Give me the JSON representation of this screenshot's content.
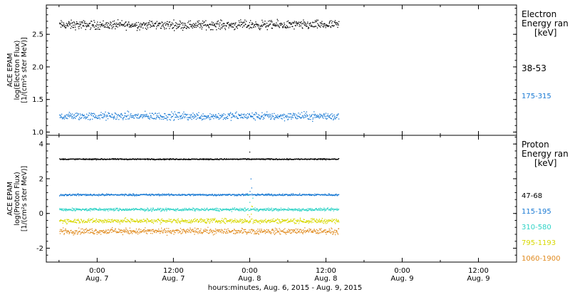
{
  "chart_data": [
    {
      "type": "scatter",
      "panel": "electron",
      "ylabel_lines": [
        "ACE EPAM",
        "log(Electron Flux)",
        "[1/(cm²s ster MeV)]"
      ],
      "ylim": [
        0.95,
        2.95
      ],
      "yticks": [
        1.0,
        1.5,
        2.0,
        2.5
      ],
      "ytick_labels": [
        "1.0",
        "1.5",
        "2.0",
        "2.5"
      ],
      "legend_title_lines": [
        "Electron",
        "Energy ran",
        "[keV]"
      ],
      "series": [
        {
          "name": "38-53",
          "color": "#000000",
          "baseline": 2.65,
          "spread": 0.1
        },
        {
          "name": "175-315",
          "color": "#1a7ad4",
          "baseline": 1.25,
          "spread": 0.09
        }
      ]
    },
    {
      "type": "scatter",
      "panel": "proton",
      "ylabel_lines": [
        "ACE EPAM",
        "log(Proton Flux)",
        "[1/(cm²s ster MeV)]"
      ],
      "ylim": [
        -2.8,
        4.5
      ],
      "yticks": [
        -2,
        0,
        2,
        4
      ],
      "ytick_labels": [
        "-2",
        "0",
        "2",
        "4"
      ],
      "legend_title_lines": [
        "Proton",
        "Energy ran",
        "[keV]"
      ],
      "series": [
        {
          "name": "47-68",
          "color": "#000000",
          "baseline": 3.15,
          "spread": 0.05
        },
        {
          "name": "115-195",
          "color": "#1a7ad4",
          "baseline": 1.1,
          "spread": 0.08
        },
        {
          "name": "310-580",
          "color": "#2ed3c6",
          "baseline": 0.25,
          "spread": 0.12
        },
        {
          "name": "795-1193",
          "color": "#d8d800",
          "baseline": -0.4,
          "spread": 0.2
        },
        {
          "name": "1060-1900",
          "color": "#e08a1e",
          "baseline": -1.0,
          "spread": 0.25
        }
      ]
    }
  ],
  "x_axis": {
    "hours_range": [
      -8,
      66
    ],
    "data_end_hours": 38,
    "ticks": [
      {
        "hours": 0,
        "time": "0:00",
        "date": "Aug. 7"
      },
      {
        "hours": 12,
        "time": "12:00",
        "date": "Aug. 7"
      },
      {
        "hours": 24,
        "time": "0:00",
        "date": "Aug. 8"
      },
      {
        "hours": 36,
        "time": "12:00",
        "date": "Aug. 8"
      },
      {
        "hours": 48,
        "time": "0:00",
        "date": "Aug. 9"
      },
      {
        "hours": 60,
        "time": "12:00",
        "date": "Aug. 9"
      }
    ],
    "label": "hours:minutes, Aug.  6, 2015 - Aug.  9, 2015"
  }
}
